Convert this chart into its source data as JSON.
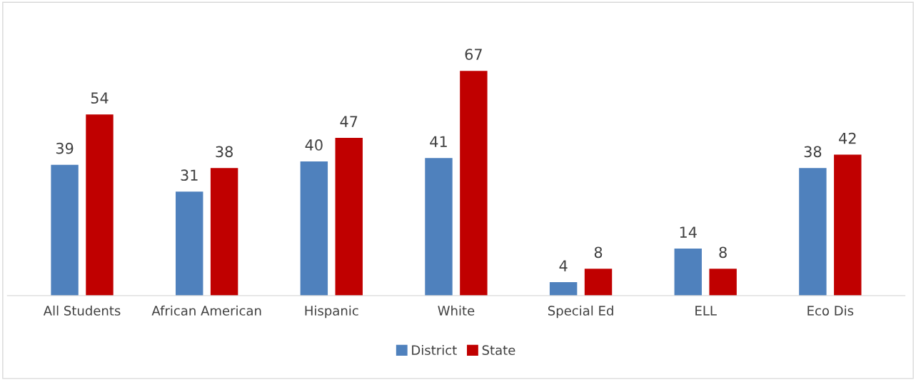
{
  "chart_data": {
    "type": "bar",
    "categories": [
      "All Students",
      "African American",
      "Hispanic",
      "White",
      "Special Ed",
      "ELL",
      "Eco Dis"
    ],
    "series": [
      {
        "name": "District",
        "color": "#4f81bd",
        "values": [
          39,
          31,
          40,
          41,
          4,
          14,
          38
        ]
      },
      {
        "name": "State",
        "color": "#c00000",
        "values": [
          54,
          38,
          47,
          67,
          8,
          8,
          42
        ]
      }
    ],
    "data_labels": true,
    "legend": "bottom"
  }
}
